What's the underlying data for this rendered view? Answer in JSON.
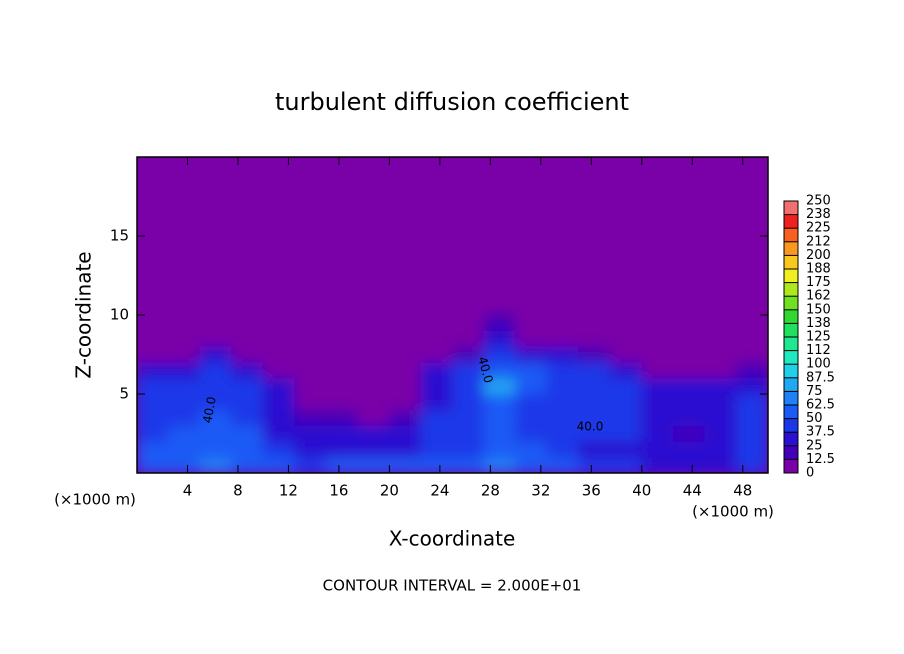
{
  "chart_data": {
    "type": "contour",
    "title": "turbulent diffusion coefficient",
    "xlabel": "X-coordinate",
    "ylabel": "Z-coordinate",
    "xunit": "(×1000 m)",
    "yunit": "(×1000 m)",
    "footer": "CONTOUR INTERVAL = 2.000E+01",
    "annotations": [
      "40.0",
      "40.0",
      "40.0"
    ],
    "xlim": [
      0,
      50
    ],
    "ylim": [
      0,
      20
    ],
    "xticks": [
      4,
      8,
      12,
      16,
      20,
      24,
      28,
      32,
      36,
      40,
      44,
      48
    ],
    "yticks": [
      5,
      10,
      15
    ],
    "x": [
      1.25,
      3.75,
      6.25,
      8.75,
      11.25,
      13.75,
      16.25,
      18.75,
      21.25,
      23.75,
      26.25,
      28.75,
      31.25,
      33.75,
      36.25,
      38.75,
      41.25,
      43.75,
      46.25,
      48.75
    ],
    "y": [
      0.5,
      1.5,
      2.5,
      3.5,
      4.5,
      5.5,
      6.5,
      7.5,
      8.5,
      9.5
    ],
    "z": [
      [
        55,
        60,
        65,
        60,
        50,
        45,
        50,
        55,
        55,
        55,
        55,
        65,
        60,
        50,
        45,
        40,
        35,
        30,
        30,
        40
      ],
      [
        50,
        55,
        60,
        55,
        40,
        30,
        35,
        35,
        30,
        45,
        45,
        60,
        55,
        40,
        35,
        30,
        25,
        25,
        30,
        40
      ],
      [
        45,
        50,
        55,
        50,
        35,
        25,
        25,
        25,
        25,
        40,
        45,
        55,
        45,
        40,
        45,
        40,
        30,
        20,
        25,
        40
      ],
      [
        40,
        45,
        50,
        45,
        30,
        15,
        15,
        10,
        20,
        40,
        45,
        50,
        45,
        45,
        45,
        40,
        35,
        25,
        30,
        40
      ],
      [
        40,
        40,
        45,
        40,
        30,
        5,
        5,
        5,
        5,
        35,
        45,
        55,
        45,
        45,
        45,
        40,
        35,
        30,
        35,
        40
      ],
      [
        40,
        40,
        45,
        40,
        25,
        0,
        0,
        0,
        0,
        35,
        45,
        85,
        50,
        45,
        45,
        40,
        30,
        25,
        30,
        35
      ],
      [
        25,
        35,
        40,
        35,
        10,
        0,
        0,
        0,
        0,
        25,
        40,
        60,
        50,
        45,
        40,
        30,
        10,
        5,
        10,
        20
      ],
      [
        0,
        5,
        25,
        10,
        0,
        0,
        0,
        0,
        0,
        5,
        20,
        40,
        35,
        30,
        20,
        5,
        0,
        0,
        0,
        0
      ],
      [
        0,
        0,
        5,
        0,
        0,
        0,
        0,
        0,
        0,
        0,
        5,
        35,
        0,
        0,
        0,
        0,
        0,
        0,
        0,
        0
      ],
      [
        0,
        0,
        0,
        0,
        0,
        0,
        0,
        0,
        0,
        0,
        0,
        15,
        0,
        0,
        0,
        0,
        0,
        0,
        0,
        0
      ]
    ],
    "levels": [
      0,
      12.5,
      25,
      37.5,
      50,
      62.5,
      75,
      87.5,
      100,
      {
        "value": 112.5,
        "label": "112"
      },
      125,
      {
        "value": 137.5,
        "label": "138"
      },
      150,
      {
        "value": 162.5,
        "label": "162"
      },
      175,
      {
        "value": 187.5,
        "label": "188"
      },
      200,
      {
        "value": 212.5,
        "label": "212"
      },
      225,
      {
        "value": 237.5,
        "label": "238"
      },
      250
    ],
    "colors": [
      "#7a00a8",
      "#4400b8",
      "#2a10d0",
      "#1a38e8",
      "#1a5af5",
      "#2080f5",
      "#20a8f0",
      "#20d0e8",
      "#20e8c0",
      "#20e890",
      "#20e060",
      "#30d830",
      "#70e020",
      "#b0e820",
      "#f0f020",
      "#f8c820",
      "#f89820",
      "#f86020",
      "#f02020",
      "#f07070"
    ]
  }
}
